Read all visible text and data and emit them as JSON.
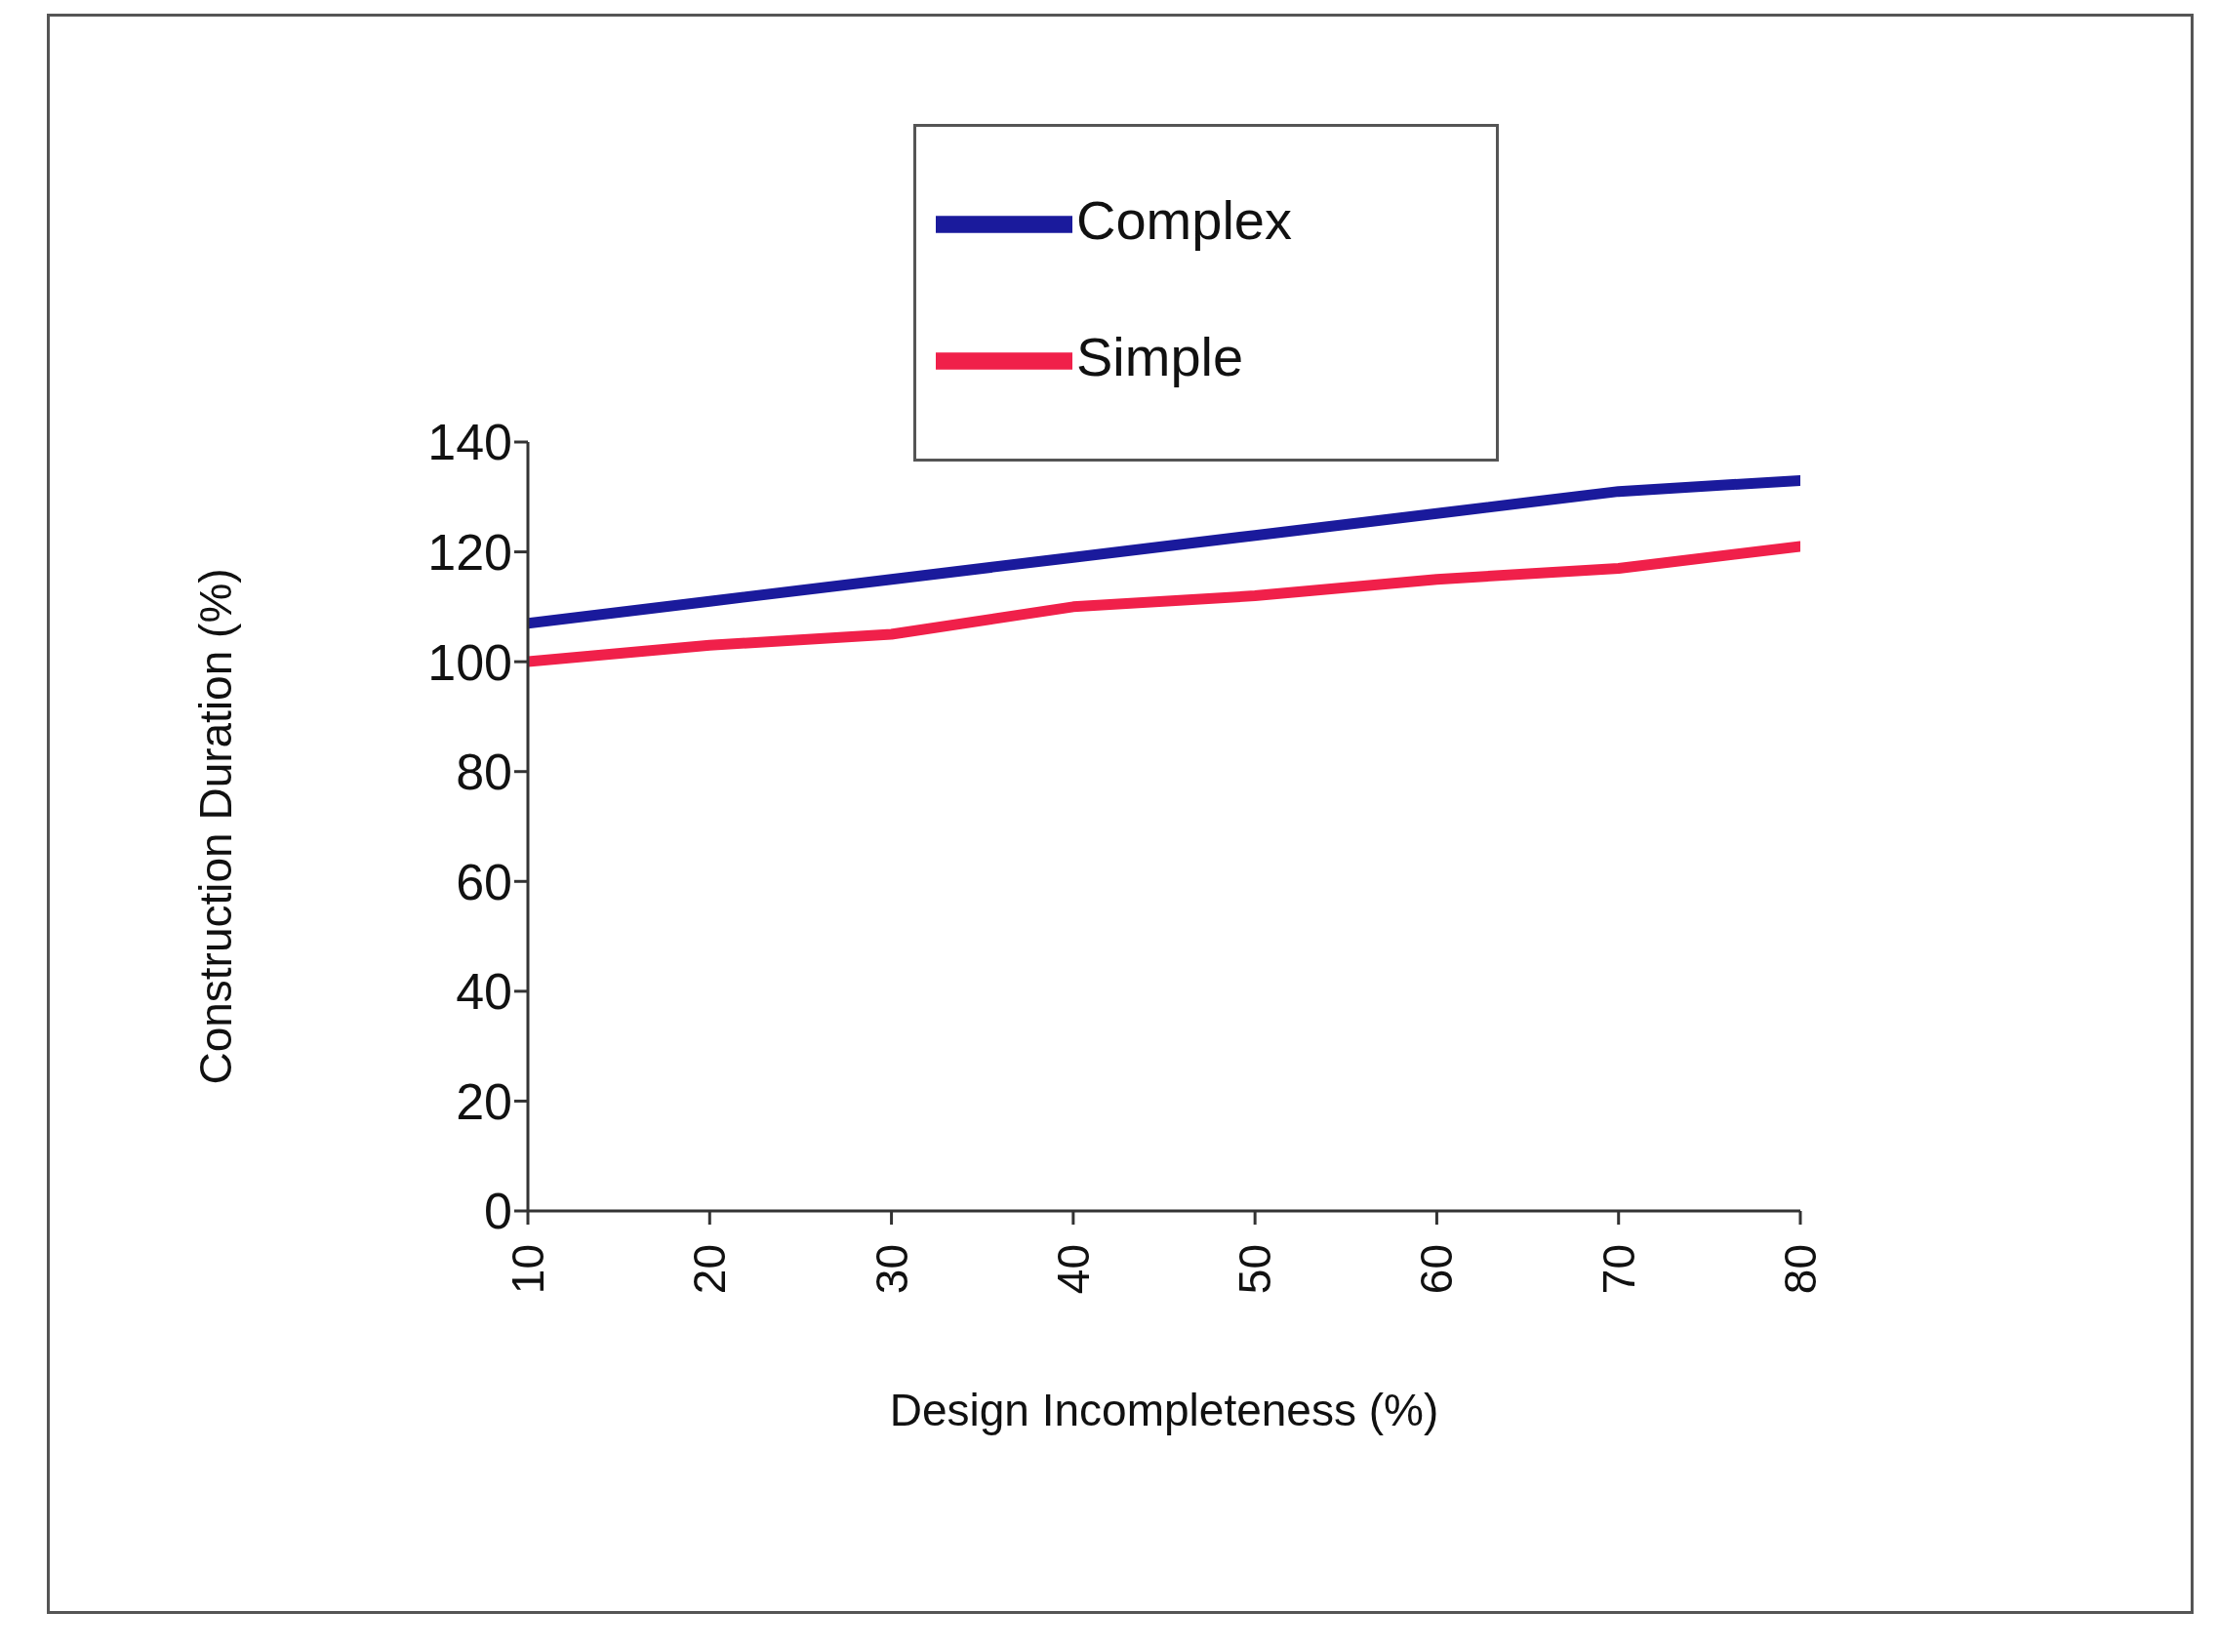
{
  "chart_data": {
    "type": "line",
    "xlabel": "Design Incompleteness (%)",
    "ylabel": "Construction Duration (%)",
    "x": [
      10,
      20,
      30,
      40,
      50,
      60,
      70,
      80
    ],
    "series": [
      {
        "name": "Complex",
        "color": "#1a1a9c",
        "values": [
          107,
          111,
          115,
          119,
          123,
          127,
          131,
          133
        ]
      },
      {
        "name": "Simple",
        "color": "#f0204a",
        "values": [
          100,
          103,
          105,
          110,
          112,
          115,
          117,
          121
        ]
      }
    ],
    "xlim": [
      10,
      80
    ],
    "xticks": [
      10,
      20,
      30,
      40,
      50,
      60,
      70,
      80
    ],
    "ylim": [
      0,
      140
    ],
    "yticks": [
      0,
      20,
      40,
      60,
      80,
      100,
      120,
      140
    ],
    "grid": false,
    "legend": "top",
    "marker": "none",
    "line_style": "solid"
  }
}
